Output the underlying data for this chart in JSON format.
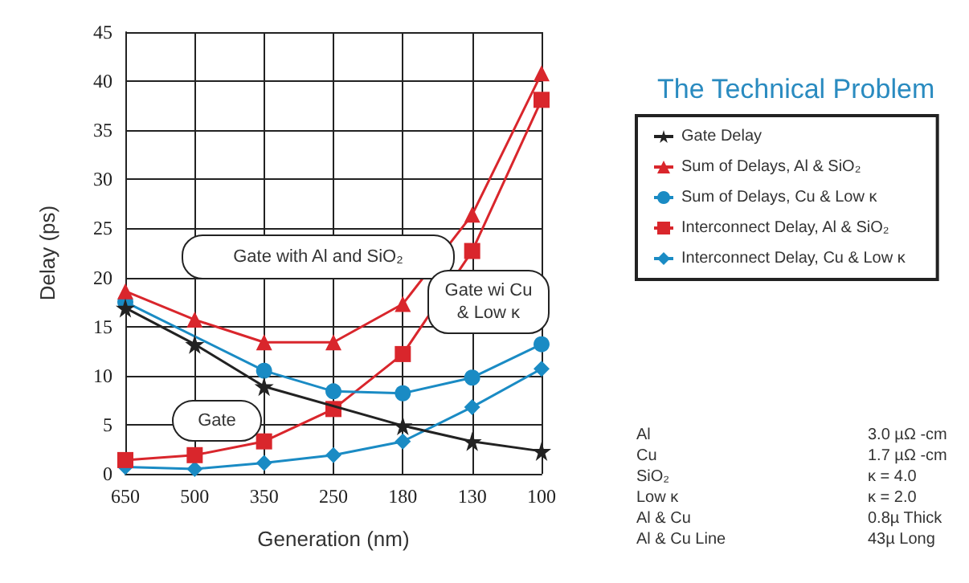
{
  "chart_data": {
    "type": "line",
    "title": "The Technical Problem",
    "xlabel": "Generation (nm)",
    "ylabel": "Delay (ps)",
    "categories": [
      "650",
      "500",
      "350",
      "250",
      "180",
      "130",
      "100"
    ],
    "series": [
      {
        "name": "Gate Delay",
        "color": "#222222",
        "marker": "star",
        "values": [
          16.9,
          13.2,
          8.9,
          null,
          4.9,
          3.3,
          2.3
        ]
      },
      {
        "name": "Sum of Delays, Al & SiO₂",
        "color": "#d9262c",
        "marker": "triangle",
        "values": [
          18.6,
          15.7,
          13.4,
          13.4,
          17.3,
          26.4,
          40.8
        ]
      },
      {
        "name": "Sum of Delays, Cu & Low κ",
        "color": "#1a8bc4",
        "marker": "circle",
        "values": [
          17.5,
          null,
          10.5,
          8.4,
          8.2,
          9.8,
          13.2
        ]
      },
      {
        "name": "Interconnect Delay, Al & SiO₂",
        "color": "#d9262c",
        "marker": "square",
        "values": [
          1.4,
          1.9,
          3.3,
          6.6,
          12.2,
          22.7,
          38.1
        ]
      },
      {
        "name": "Interconnect Delay, Cu & Low κ",
        "color": "#1a8bc4",
        "marker": "diamond",
        "values": [
          0.7,
          0.5,
          1.1,
          1.9,
          3.3,
          6.8,
          10.7
        ]
      }
    ],
    "ylim": [
      0,
      45
    ],
    "yticks": [
      0,
      5,
      10,
      15,
      20,
      25,
      30,
      35,
      40,
      45
    ],
    "grid": true,
    "legend": "right",
    "annotations": [
      "Gate with Al and SiO₂",
      "Gate wi Cu\n& Low κ",
      "Gate",
      "Al",
      "3.0 µΩ -cm",
      "Cu",
      "1.7 µΩ -cm",
      "SiO₂",
      "κ = 4.0",
      "Low κ",
      "κ = 2.0",
      "Al & Cu",
      "0.8µ Thick",
      "Al & Cu Line",
      "43µ Long"
    ]
  }
}
